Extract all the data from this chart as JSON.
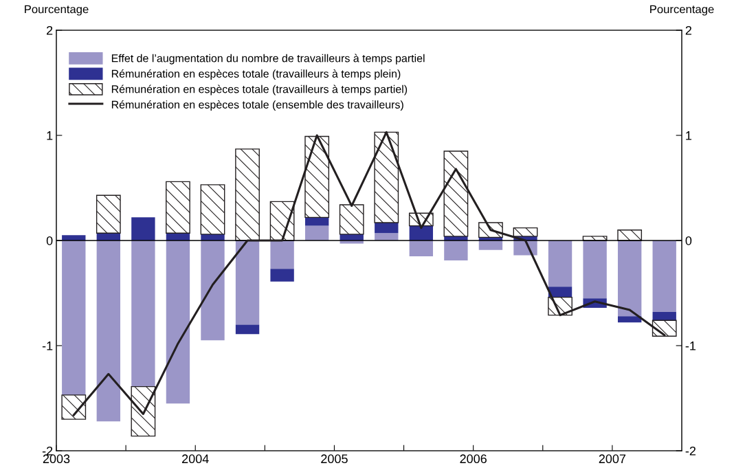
{
  "chart_data": {
    "type": "bar",
    "stacked": true,
    "x": [
      2003.125,
      2003.375,
      2003.625,
      2003.875,
      2004.125,
      2004.375,
      2004.625,
      2004.875,
      2005.125,
      2005.375,
      2005.625,
      2005.875,
      2006.125,
      2006.375,
      2006.625,
      2006.875,
      2007.125,
      2007.375
    ],
    "series": [
      {
        "name": "Effet de l’augmentation du nombre de travailleurs à temps partiel",
        "color": "#9b96c8",
        "values": [
          -1.47,
          -1.72,
          -1.39,
          -1.55,
          -0.95,
          -0.8,
          -0.27,
          0.14,
          -0.03,
          0.07,
          -0.15,
          -0.19,
          -0.09,
          -0.14,
          -0.44,
          -0.55,
          -0.72,
          -0.68
        ]
      },
      {
        "name": "Rémunération en espèces totale (travailleurs à temps plein)",
        "color": "#2e3192",
        "values": [
          0.05,
          0.07,
          0.22,
          0.07,
          0.06,
          -0.09,
          -0.12,
          0.08,
          0.06,
          0.1,
          0.14,
          0.04,
          0.03,
          0.04,
          -0.1,
          -0.09,
          -0.06,
          -0.08
        ]
      },
      {
        "name": "Rémunération en espèces totale (travailleurs à temps partiel)",
        "color": "#231f20",
        "values": [
          -0.23,
          0.36,
          -0.47,
          0.49,
          0.47,
          0.87,
          0.37,
          0.77,
          0.28,
          0.86,
          0.12,
          0.81,
          0.14,
          0.08,
          -0.17,
          0.04,
          0.1,
          -0.15
        ]
      },
      {
        "name": "Rémunération en espèces totale (ensemble des travailleurs)",
        "type": "line",
        "color": "#231f20",
        "values": [
          -1.66,
          -1.27,
          -1.65,
          -0.98,
          -0.42,
          0,
          0,
          1.0,
          0.33,
          1.03,
          0.12,
          0.68,
          0.1,
          0,
          -0.71,
          -0.58,
          -0.66,
          -0.9
        ]
      }
    ],
    "xlim": [
      2003,
      2007.5
    ],
    "xticks": [
      2003,
      {
        "value": 2003.5,
        "label": null
      },
      2004,
      {
        "value": 2004.5,
        "label": null
      },
      2005,
      {
        "value": 2005.5,
        "label": null
      },
      2006,
      {
        "value": 2006.5,
        "label": null
      },
      2007
    ],
    "ylim": [
      -2,
      2
    ],
    "yticks": [
      -2,
      -1,
      0,
      1,
      2
    ],
    "y2lim": [
      -2,
      2
    ],
    "y2ticks": [
      -2,
      -1,
      0,
      1,
      2
    ],
    "ylabel": "Pourcentage",
    "y2label": "Pourcentage",
    "ref_lines": [
      {
        "axis": "y",
        "value": 0,
        "color": "#000000"
      }
    ],
    "legend": "top left",
    "grid": false
  }
}
